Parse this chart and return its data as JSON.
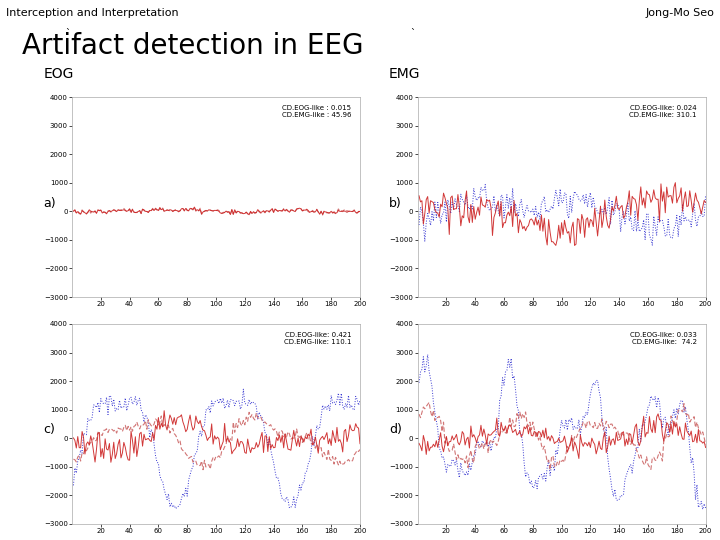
{
  "title": "Artifact detection in EEG",
  "header_left": "Interception and Interpretation",
  "header_right": "Jong-Mo Seo",
  "label_eog": "EOG",
  "label_emg": "EMG",
  "subplot_labels": [
    "a)",
    "b)",
    "c)",
    "d)"
  ],
  "annotations": [
    "CD.EOG-like : 0.015\nCD.EMG-like : 45.96",
    "CD.EOG-like: 0.024\nCD.EMG-like: 310.1",
    "CD.EOG-like: 0.421\nCD.EMG-like: 110.1",
    "CD.EOG-like: 0.033\nCD.EMG-like:  74.2"
  ],
  "ylim": [
    -3000,
    4000
  ],
  "yticks": [
    -3000,
    -2000,
    -1000,
    0,
    1000,
    2000,
    3000,
    4000
  ],
  "xlim": [
    0,
    200
  ],
  "xticks": [
    20,
    40,
    60,
    80,
    100,
    120,
    140,
    160,
    180,
    200
  ],
  "background_header": "#d4edb0",
  "color_solid": "#cc2222",
  "color_dashed_red": "#cc6666",
  "color_dotted": "#2222cc",
  "seed": 42
}
